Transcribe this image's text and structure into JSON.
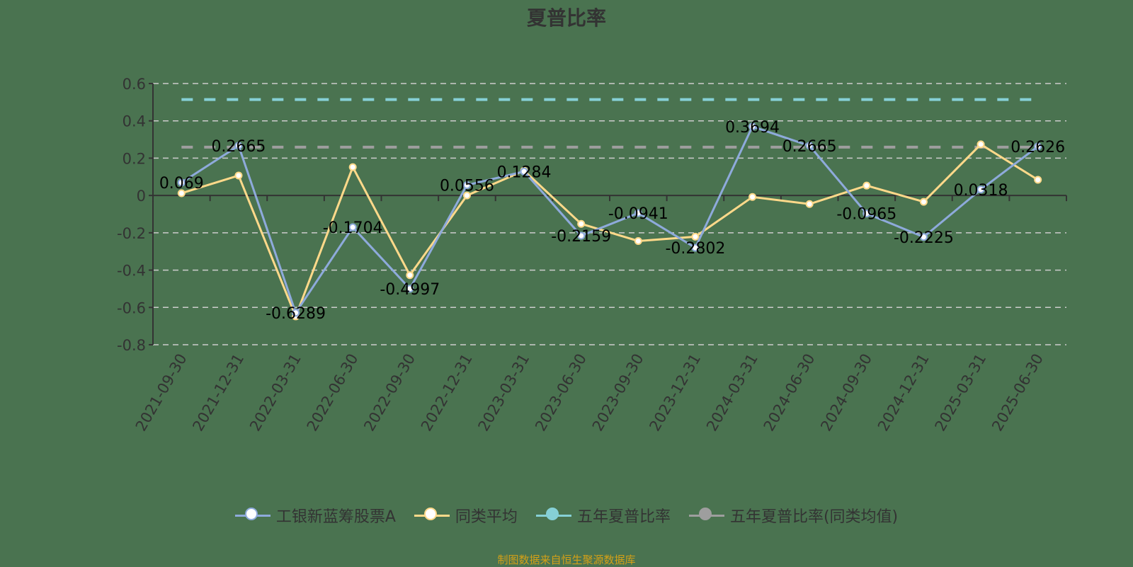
{
  "title": "夏普比率",
  "legend": [
    {
      "label": "工银新蓝筹股票A",
      "color": "#8eaadb",
      "fill": "#ffffff"
    },
    {
      "label": "同类平均",
      "color": "#ffd98a",
      "fill": "#ffffff"
    },
    {
      "label": "五年夏普比率",
      "color": "#86d0d6",
      "fill": "#86d0d6"
    },
    {
      "label": "五年夏普比率(同类均值)",
      "color": "#9e9e9e",
      "fill": "#9e9e9e"
    }
  ],
  "source": "制图数据来自恒生聚源数据库",
  "chart_data": {
    "type": "line",
    "title": "夏普比率",
    "xlabel": "",
    "ylabel": "",
    "ylim": [
      -0.8,
      0.6
    ],
    "yticks": [
      0.6,
      0.4,
      0.2,
      0,
      -0.2,
      -0.4,
      -0.6,
      -0.8
    ],
    "grid": true,
    "legend_position": "bottom",
    "categories": [
      "2021-09-30",
      "2021-12-31",
      "2022-03-31",
      "2022-06-30",
      "2022-09-30",
      "2022-12-31",
      "2023-03-31",
      "2023-06-30",
      "2023-09-30",
      "2023-12-31",
      "2024-03-31",
      "2024-06-30",
      "2024-09-30",
      "2024-12-31",
      "2025-03-31",
      "2025-06-30"
    ],
    "series": [
      {
        "name": "工银新蓝筹股票A",
        "color": "#8eaadb",
        "labeled": true,
        "values": [
          0.069,
          0.2665,
          -0.6289,
          -0.1704,
          -0.4997,
          0.0556,
          0.1284,
          -0.2159,
          -0.0941,
          -0.2802,
          0.3694,
          0.2665,
          -0.0965,
          -0.2225,
          0.0318,
          0.2626
        ]
      },
      {
        "name": "同类平均",
        "color": "#ffd98a",
        "labeled": false,
        "values": [
          0.012,
          0.107,
          -0.648,
          0.152,
          -0.427,
          0.0,
          0.133,
          -0.152,
          -0.244,
          -0.221,
          -0.008,
          -0.046,
          0.053,
          -0.034,
          0.274,
          0.084
        ]
      },
      {
        "name": "五年夏普比率",
        "color": "#86d0d6",
        "type": "reference-line",
        "value": 0.514
      },
      {
        "name": "五年夏普比率(同类均值)",
        "color": "#9e9e9e",
        "type": "reference-line",
        "value": 0.259
      }
    ]
  }
}
